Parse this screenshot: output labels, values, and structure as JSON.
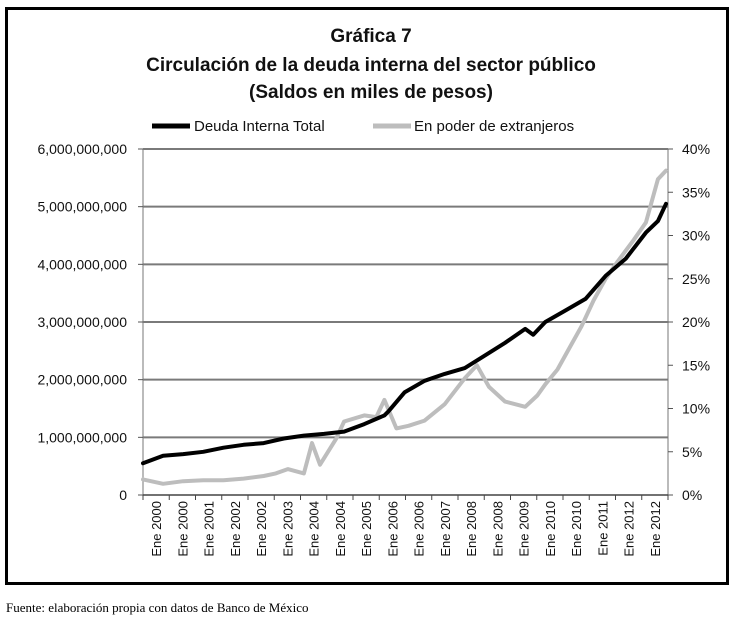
{
  "chart_title": "Gráfica 7",
  "chart_subtitle": "Circulación de la deuda interna del sector público",
  "chart_subtitle2": "(Saldos en miles de pesos)",
  "source_note": "Fuente: elaboración propia con datos de Banco de México",
  "chart_data": {
    "type": "line",
    "legend_position": "top",
    "grid": "horizontal",
    "x_tick_labels": [
      "Ene 2000",
      "Ene 2000",
      "Ene 2001",
      "Ene 2002",
      "Ene 2002",
      "Ene 2003",
      "Ene 2004",
      "Ene 2004",
      "Ene 2005",
      "Ene 2006",
      "Ene 2006",
      "Ene 2007",
      "Ene 2008",
      "Ene 2008",
      "Ene 2009",
      "Ene 2010",
      "Ene 2010",
      "Ene 2011",
      "Ene 2012",
      "Ene 2012"
    ],
    "y_left": {
      "ylim": [
        0,
        6000000000
      ],
      "tick_labels": [
        "0",
        "1,000,000,000",
        "2,000,000,000",
        "3,000,000,000",
        "4,000,000,000",
        "5,000,000,000",
        "6,000,000,000"
      ]
    },
    "y_right": {
      "ylim": [
        0,
        40
      ],
      "tick_labels": [
        "0%",
        "5%",
        "10%",
        "15%",
        "20%",
        "25%",
        "30%",
        "35%",
        "40%"
      ]
    },
    "series": [
      {
        "name": "Deuda Interna Total",
        "axis": "left",
        "color": "#000000",
        "x": [
          2000.0,
          2000.5,
          2001.0,
          2001.5,
          2002.0,
          2002.5,
          2003.0,
          2003.5,
          2004.0,
          2004.5,
          2005.0,
          2005.5,
          2006.0,
          2006.1,
          2006.5,
          2007.0,
          2007.5,
          2008.0,
          2008.5,
          2009.0,
          2009.5,
          2009.7,
          2010.0,
          2010.5,
          2011.0,
          2011.5,
          2012.0,
          2012.5,
          2012.8,
          2013.0
        ],
        "y": [
          550000000,
          680000000,
          710000000,
          750000000,
          820000000,
          870000000,
          900000000,
          980000000,
          1030000000,
          1060000000,
          1100000000,
          1230000000,
          1380000000,
          1450000000,
          1780000000,
          1980000000,
          2100000000,
          2200000000,
          2420000000,
          2640000000,
          2880000000,
          2780000000,
          3000000000,
          3200000000,
          3400000000,
          3800000000,
          4100000000,
          4550000000,
          4750000000,
          5050000000
        ]
      },
      {
        "name": "En poder de extranjeros",
        "axis": "right",
        "color": "#bdbdbd",
        "x": [
          2000.0,
          2000.5,
          2001.0,
          2001.5,
          2002.0,
          2002.5,
          2003.0,
          2003.3,
          2003.6,
          2004.0,
          2004.2,
          2004.4,
          2004.8,
          2005.0,
          2005.5,
          2005.8,
          2006.0,
          2006.3,
          2006.6,
          2007.0,
          2007.5,
          2008.0,
          2008.3,
          2008.6,
          2009.0,
          2009.5,
          2009.8,
          2010.0,
          2010.3,
          2010.6,
          2010.9,
          2011.2,
          2011.5,
          2011.8,
          2012.2,
          2012.5,
          2012.8,
          2013.0
        ],
        "y": [
          1.8,
          1.3,
          1.6,
          1.7,
          1.7,
          1.9,
          2.2,
          2.5,
          3.0,
          2.5,
          6.0,
          3.5,
          6.5,
          8.5,
          9.2,
          9.0,
          11.0,
          7.7,
          8.0,
          8.6,
          10.5,
          13.5,
          15.0,
          12.5,
          10.8,
          10.2,
          11.5,
          12.8,
          14.5,
          17.0,
          19.5,
          22.5,
          25.0,
          27.0,
          29.5,
          31.5,
          36.5,
          37.5
        ]
      }
    ]
  }
}
